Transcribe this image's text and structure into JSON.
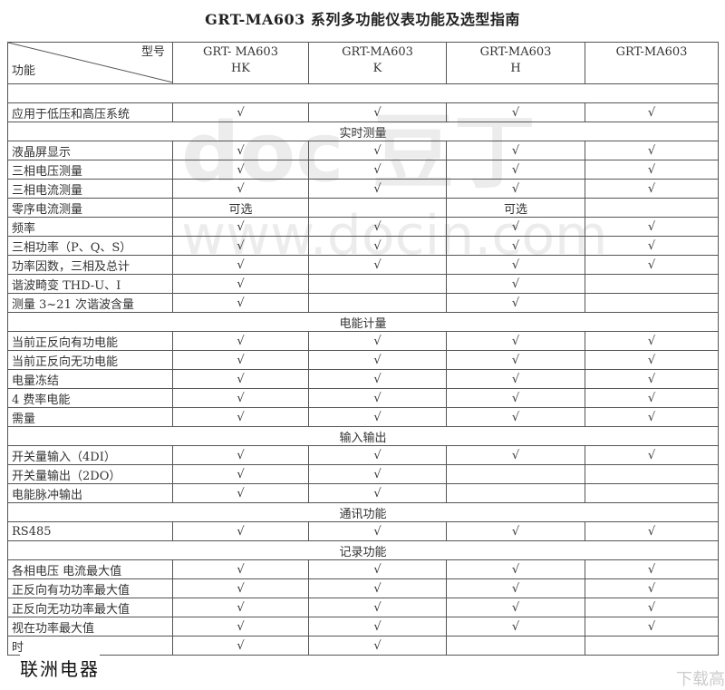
{
  "title": "GRT-MA603 系列多功能仪表功能及选型指南",
  "header": {
    "model_label": "型号",
    "function_label": "功能",
    "models": [
      {
        "line1": "GRT- MA603",
        "line2": "HK"
      },
      {
        "line1": "GRT-MA603",
        "line2": "K"
      },
      {
        "line1": "GRT-MA603",
        "line2": "H"
      },
      {
        "line1": "GRT-MA603",
        "line2": ""
      }
    ]
  },
  "rows": [
    {
      "type": "blank"
    },
    {
      "type": "item",
      "label": "应用于低压和高压系统",
      "cells": [
        "√",
        "√",
        "√",
        "√"
      ]
    },
    {
      "type": "section",
      "label": "实时测量"
    },
    {
      "type": "item",
      "label": "液晶屏显示",
      "cells": [
        "√",
        "√",
        "√",
        "√"
      ]
    },
    {
      "type": "item",
      "label": "三相电压测量",
      "cells": [
        "√",
        "√",
        "√",
        "√"
      ]
    },
    {
      "type": "item",
      "label": "三相电流测量",
      "cells": [
        "√",
        "√",
        "√",
        "√"
      ]
    },
    {
      "type": "item",
      "label": "零序电流测量",
      "cells": [
        "可选",
        "",
        "可选",
        ""
      ]
    },
    {
      "type": "item",
      "label": "频率",
      "cells": [
        "√",
        "√",
        "√",
        "√"
      ]
    },
    {
      "type": "item",
      "label": "三相功率（P、Q、S）",
      "cells": [
        "√",
        "√",
        "√",
        "√"
      ]
    },
    {
      "type": "item",
      "label": "功率因数，三相及总计",
      "cells": [
        "√",
        "√",
        "√",
        "√"
      ]
    },
    {
      "type": "item",
      "label": "谐波畸变 THD-U、I",
      "cells": [
        "√",
        "",
        "√",
        ""
      ]
    },
    {
      "type": "item",
      "label": "测量 3~21 次谐波含量",
      "cells": [
        "√",
        "",
        "√",
        ""
      ]
    },
    {
      "type": "section",
      "label": "电能计量"
    },
    {
      "type": "item",
      "label": "当前正反向有功电能",
      "cells": [
        "√",
        "√",
        "√",
        "√"
      ]
    },
    {
      "type": "item",
      "label": "当前正反向无功电能",
      "cells": [
        "√",
        "√",
        "√",
        "√"
      ]
    },
    {
      "type": "item",
      "label": "电量冻结",
      "cells": [
        "√",
        "√",
        "√",
        "√"
      ]
    },
    {
      "type": "item",
      "label": "4 费率电能",
      "cells": [
        "√",
        "√",
        "√",
        "√"
      ]
    },
    {
      "type": "item",
      "label": "需量",
      "cells": [
        "√",
        "√",
        "√",
        "√"
      ]
    },
    {
      "type": "section",
      "label": "输入输出"
    },
    {
      "type": "item",
      "label": "开关量输入（4DI）",
      "cells": [
        "√",
        "√",
        "√",
        "√"
      ]
    },
    {
      "type": "item",
      "label": "开关量输出（2DO）",
      "cells": [
        "√",
        "√",
        "",
        ""
      ]
    },
    {
      "type": "item",
      "label": "电能脉冲输出",
      "cells": [
        "√",
        "√",
        "",
        ""
      ]
    },
    {
      "type": "section",
      "label": "通讯功能"
    },
    {
      "type": "item",
      "label": "RS485",
      "cells": [
        "√",
        "√",
        "√",
        "√"
      ]
    },
    {
      "type": "section",
      "label": "记录功能"
    },
    {
      "type": "item",
      "label": "各相电压 电流最大值",
      "cells": [
        "√",
        "√",
        "√",
        "√"
      ]
    },
    {
      "type": "item",
      "label": "正反向有功功率最大值",
      "cells": [
        "√",
        "√",
        "√",
        "√"
      ]
    },
    {
      "type": "item",
      "label": "正反向无功功率最大值",
      "cells": [
        "√",
        "√",
        "√",
        "√"
      ]
    },
    {
      "type": "item",
      "label": "视在功率最大值",
      "cells": [
        "√",
        "√",
        "√",
        "√"
      ]
    },
    {
      "type": "item",
      "label": "时",
      "cells": [
        "√",
        "√",
        "",
        ""
      ]
    }
  ],
  "watermarks": {
    "logo": "doc 豆丁",
    "site": "www.docin.com",
    "brand": "联洲电器",
    "download": "下载高"
  }
}
